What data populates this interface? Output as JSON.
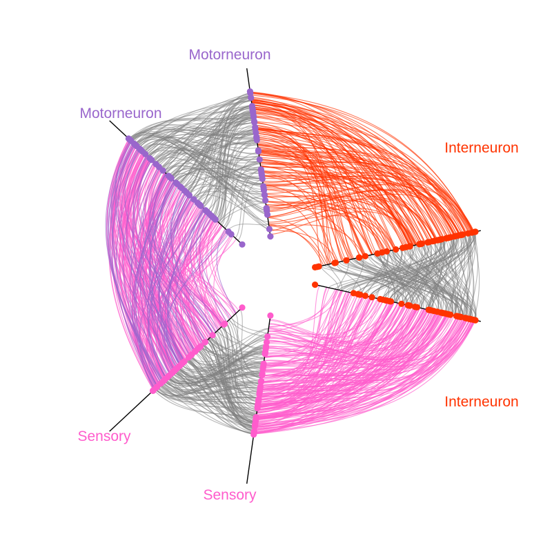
{
  "chart_data": {
    "type": "hive",
    "colors": {
      "motorneuron": "#9966CC",
      "interneuron": "#FF3300",
      "sensory": "#FF5CCC",
      "inter_group_edge": "#808080",
      "axis_line": "#000000"
    },
    "axes": [
      {
        "id": "motor-a",
        "label": "Motorneuron",
        "group": "motorneuron"
      },
      {
        "id": "motor-b",
        "label": "Motorneuron",
        "group": "motorneuron"
      },
      {
        "id": "inter-a",
        "label": "Interneuron",
        "group": "interneuron"
      },
      {
        "id": "inter-b",
        "label": "Interneuron",
        "group": "interneuron"
      },
      {
        "id": "sensory-a",
        "label": "Sensory",
        "group": "sensory"
      },
      {
        "id": "sensory-b",
        "label": "Sensory",
        "group": "sensory"
      }
    ],
    "edge_bundles": [
      {
        "from": "motor-a",
        "to": "inter-a",
        "color_group": "interneuron"
      },
      {
        "from": "inter-b",
        "to": "sensory-a",
        "color_group": "sensory"
      },
      {
        "from": "sensory-b",
        "to": "motor-b",
        "color_group": "sensory"
      },
      {
        "from": "motor-b",
        "to": "sensory-b",
        "color_group": "motorneuron"
      },
      {
        "from": "motor-a",
        "to": "motor-b",
        "color_group": "inter_group_edge"
      },
      {
        "from": "inter-a",
        "to": "inter-b",
        "color_group": "inter_group_edge"
      },
      {
        "from": "sensory-a",
        "to": "sensory-b",
        "color_group": "inter_group_edge"
      }
    ]
  }
}
